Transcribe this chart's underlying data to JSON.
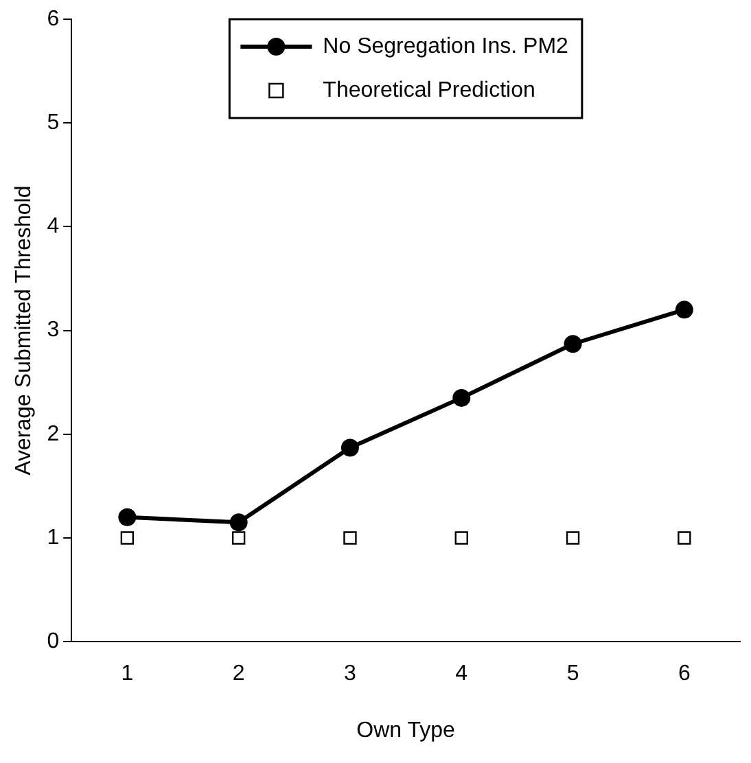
{
  "chart_data": {
    "type": "line",
    "xlabel": "Own Type",
    "ylabel": "Average Submitted Threshold",
    "categories": [
      "1",
      "2",
      "3",
      "4",
      "5",
      "6"
    ],
    "series": [
      {
        "name": "No Segregation Ins. PM2",
        "color": "#000000",
        "marker": "circle",
        "values": [
          1.2,
          1.15,
          1.87,
          2.35,
          2.87,
          3.2
        ]
      },
      {
        "name": "Theoretical Prediction",
        "type": "scatter",
        "color": "#000000",
        "marker": "square",
        "values": [
          1,
          1,
          1,
          1,
          1,
          1
        ]
      }
    ],
    "ylim": [
      0,
      6
    ],
    "yticks": [
      0,
      1,
      2,
      3,
      4,
      5,
      6
    ],
    "grid": false,
    "legend": "top"
  }
}
